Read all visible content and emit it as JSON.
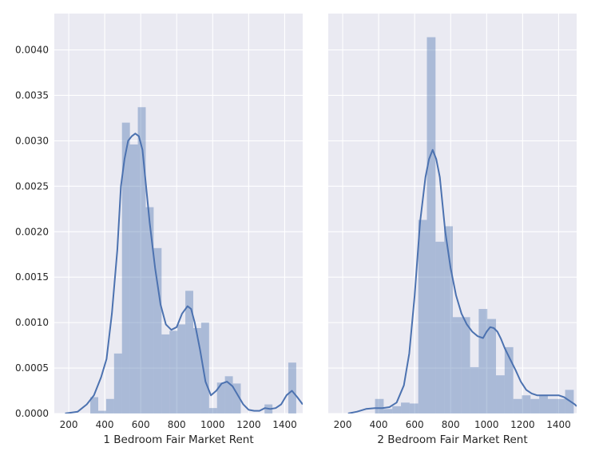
{
  "style": {
    "panel_background": "#eaeaf2",
    "grid_color": "#ffffff",
    "bar_color": "#4c72b0",
    "bar_opacity": 0.4,
    "line_color": "#4c72b0",
    "text_color": "#262626"
  },
  "chart_data": [
    {
      "type": "histogram",
      "xlabel": "1 Bedroom Fair Market Rent",
      "ylabel": "",
      "xlim": [
        120,
        1500
      ],
      "ylim": [
        0,
        0.0044
      ],
      "xticks": [
        200,
        400,
        600,
        800,
        1000,
        1200,
        1400
      ],
      "yticks": [
        0.0,
        0.0005,
        0.001,
        0.0015,
        0.002,
        0.0025,
        0.003,
        0.0035,
        0.004
      ],
      "ytick_labels": [
        "0.0000",
        "0.0005",
        "0.0010",
        "0.0015",
        "0.0020",
        "0.0025",
        "0.0030",
        "0.0035",
        "0.0040"
      ],
      "grid": true,
      "bin_edges": [
        320,
        364,
        408,
        452,
        496,
        540,
        584,
        628,
        672,
        716,
        760,
        804,
        848,
        892,
        936,
        980,
        1024,
        1068,
        1112,
        1156,
        1200,
        1244,
        1288,
        1332,
        1376,
        1420,
        1464
      ],
      "bin_values": [
        0.00018,
        3e-05,
        0.00016,
        0.00066,
        0.0032,
        0.00296,
        0.00337,
        0.00227,
        0.00182,
        0.00087,
        0.00091,
        0.00098,
        0.00135,
        0.00094,
        0.001,
        6e-05,
        0.00034,
        0.00041,
        0.00033,
        0.0,
        0.0,
        0.0,
        0.0001,
        0.0,
        0.0,
        0.00056
      ],
      "kde": {
        "x": [
          180,
          250,
          300,
          340,
          380,
          410,
          440,
          470,
          490,
          510,
          530,
          550,
          570,
          590,
          610,
          630,
          650,
          680,
          710,
          740,
          770,
          800,
          830,
          860,
          880,
          900,
          930,
          960,
          990,
          1020,
          1050,
          1080,
          1110,
          1140,
          1170,
          1200,
          1230,
          1260,
          1290,
          1320,
          1350,
          1380,
          1410,
          1440,
          1470,
          1500
        ],
        "y": [
          0.0,
          2e-05,
          0.0001,
          0.0002,
          0.0004,
          0.0006,
          0.0011,
          0.0018,
          0.0025,
          0.0028,
          0.003,
          0.00305,
          0.00308,
          0.00305,
          0.0029,
          0.0025,
          0.0021,
          0.0016,
          0.0012,
          0.00098,
          0.00092,
          0.00095,
          0.0011,
          0.00118,
          0.00115,
          0.001,
          0.0007,
          0.00035,
          0.0002,
          0.00025,
          0.00033,
          0.00035,
          0.0003,
          0.0002,
          0.0001,
          4e-05,
          3e-05,
          3e-05,
          6e-05,
          5e-05,
          6e-05,
          0.0001,
          0.0002,
          0.00025,
          0.00018,
          0.0001
        ]
      }
    },
    {
      "type": "histogram",
      "xlabel": "2 Bedroom Fair Market Rent",
      "ylabel": "",
      "xlim": [
        120,
        1500
      ],
      "ylim": [
        0,
        0.0044
      ],
      "xticks": [
        200,
        400,
        600,
        800,
        1000,
        1200,
        1400
      ],
      "yticks": [
        0.0,
        0.0005,
        0.001,
        0.0015,
        0.002,
        0.0025,
        0.003,
        0.0035,
        0.004
      ],
      "grid": true,
      "bin_edges": [
        380,
        428,
        476,
        524,
        572,
        620,
        668,
        716,
        764,
        812,
        860,
        908,
        956,
        1004,
        1052,
        1100,
        1148,
        1196,
        1244,
        1292,
        1340,
        1388,
        1436,
        1484
      ],
      "bin_values": [
        0.00016,
        5e-05,
        8e-05,
        0.00012,
        0.00011,
        0.00213,
        0.00414,
        0.00189,
        0.00206,
        0.00106,
        0.00106,
        0.00051,
        0.00115,
        0.00104,
        0.00042,
        0.00073,
        0.00016,
        0.0002,
        0.00016,
        0.0002,
        0.00016,
        0.00016,
        0.00026
      ],
      "kde": {
        "x": [
          230,
          280,
          330,
          380,
          420,
          460,
          500,
          540,
          570,
          600,
          630,
          660,
          680,
          700,
          720,
          740,
          770,
          800,
          830,
          860,
          890,
          920,
          950,
          980,
          1000,
          1020,
          1040,
          1060,
          1080,
          1100,
          1130,
          1160,
          1190,
          1220,
          1250,
          1280,
          1310,
          1340,
          1370,
          1400,
          1430,
          1460,
          1490,
          1500
        ],
        "y": [
          0.0,
          2e-05,
          5e-05,
          6e-05,
          6e-05,
          7e-05,
          0.00012,
          0.00031,
          0.00066,
          0.0013,
          0.0021,
          0.0026,
          0.0028,
          0.0029,
          0.0028,
          0.0026,
          0.002,
          0.0016,
          0.0013,
          0.0011,
          0.00098,
          0.0009,
          0.00085,
          0.00083,
          0.0009,
          0.00095,
          0.00094,
          0.0009,
          0.00082,
          0.00072,
          0.0006,
          0.00048,
          0.00035,
          0.00026,
          0.00022,
          0.0002,
          0.0002,
          0.0002,
          0.0002,
          0.0002,
          0.00018,
          0.00014,
          0.0001,
          8e-05
        ]
      }
    }
  ]
}
